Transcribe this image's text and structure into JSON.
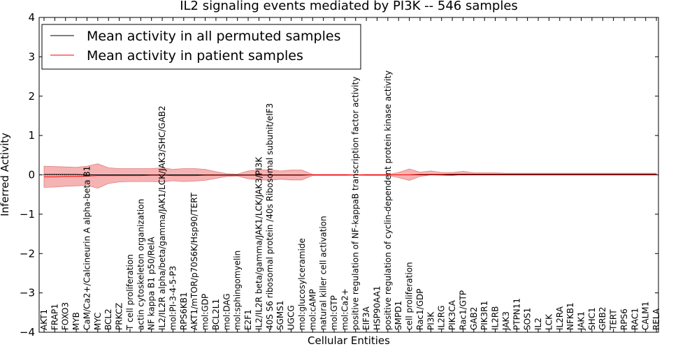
{
  "chart_data": {
    "type": "line",
    "title": "IL2 signaling events mediated by PI3K -- 546 samples",
    "xlabel": "Cellular Entities",
    "ylabel": "Inferred Activity",
    "ylim": [
      -4,
      4
    ],
    "yticks": [
      -4,
      -3,
      -2,
      -1,
      0,
      1,
      2,
      3,
      4
    ],
    "ytick_labels": [
      "−4",
      "−3",
      "−2",
      "−1",
      "0",
      "1",
      "2",
      "3",
      "4"
    ],
    "legend_position": "top-left",
    "categories": [
      "AKT1",
      "FRAP1",
      "FOXO3",
      "MYB",
      "CaM/Ca2+/Calcineurin A alpha-beta B1",
      "MYC",
      "BCL2",
      "PRKCZ",
      "T cell proliferation",
      "actin cytoskeleton organization",
      "NF kappa B1 p50/RelA",
      "IL2/IL2R alpha/beta/gamma/JAK1/LCK/JAK3/SHC/GAB2",
      "mol:PI-3-4-5-P3",
      "RPS6KB1",
      "AKT1/mTOR/p70S6K/Hsp90/TERT",
      "mol:GDP",
      "BCL2L1",
      "mol:DAG",
      "mol:sphingomyelin",
      "E2F1",
      "IL2/IL2R beta/gamma/JAK1/LCK/JAK3/PI3K",
      "40S S6 ribosomal protein /40s Ribosomal subunit/eIF3",
      "SGMS1",
      "UGCG",
      "mol:glucosylceramide",
      "mol:cAMP",
      "natural killer cell activation",
      "mol:GTP",
      "mol:Ca2+",
      "positive regulation of NF-kappaB transcription factor activity",
      "EIF3A",
      "HSP90AA1",
      "positive regulation of cyclin-dependent protein kinase activity",
      "SMPD1",
      "cell proliferation",
      "Rac1/GDP",
      "PI3K",
      "IL2RG",
      "PIK3CA",
      "Rac1/GTP",
      "GAB2",
      "PIK3R1",
      "IL2RB",
      "JAK3",
      "PTPN11",
      "SOS1",
      "IL2",
      "LCK",
      "IL2RA",
      "NFKB1",
      "JAK1",
      "SHC1",
      "GRB2",
      "TERT",
      "RPS6",
      "RAC1",
      "CALM1",
      "RELA"
    ],
    "series": [
      {
        "name": "Mean activity in all permuted samples",
        "color": "#000000",
        "values": [
          0.01,
          0.01,
          0.01,
          0.01,
          0.0,
          0.0,
          0.0,
          0.0,
          0.0,
          0.0,
          0.0,
          0.0,
          0.0,
          0.0,
          0.0,
          0.0,
          0.0,
          0.0,
          0.0,
          0.0,
          0.0,
          0.0,
          0.0,
          0.0,
          0.0,
          0.0,
          0.0,
          0.0,
          0.0,
          0.0,
          0.0,
          0.0,
          0.0,
          0.0,
          0.0,
          0.0,
          0.0,
          0.0,
          0.0,
          0.0,
          0.0,
          0.0,
          0.0,
          0.0,
          0.0,
          0.0,
          0.0,
          0.0,
          0.0,
          0.0,
          0.0,
          0.0,
          0.0,
          0.0,
          0.0,
          0.0,
          0.0,
          0.0
        ]
      },
      {
        "name": "Mean activity in patient samples",
        "color": "#ff0000",
        "values": [
          -0.05,
          -0.05,
          -0.04,
          -0.04,
          -0.03,
          -0.02,
          -0.02,
          -0.02,
          -0.02,
          -0.02,
          -0.01,
          -0.01,
          -0.02,
          -0.02,
          -0.02,
          -0.01,
          -0.01,
          -0.01,
          -0.01,
          -0.01,
          -0.01,
          -0.01,
          -0.01,
          -0.01,
          -0.01,
          0.0,
          0.0,
          0.0,
          0.0,
          0.0,
          0.0,
          0.0,
          0.0,
          0.0,
          0.0,
          0.01,
          0.01,
          0.01,
          0.02,
          0.02,
          0.02,
          0.02,
          0.02,
          0.02,
          0.02,
          0.02,
          0.02,
          0.02,
          0.02,
          0.02,
          0.02,
          0.02,
          0.02,
          0.02,
          0.02,
          0.02,
          0.02,
          0.02
        ],
        "upper": [
          0.22,
          0.21,
          0.2,
          0.19,
          0.22,
          0.28,
          0.18,
          0.16,
          0.16,
          0.16,
          0.16,
          0.18,
          0.14,
          0.16,
          0.16,
          0.14,
          0.08,
          0.03,
          0.02,
          0.1,
          0.12,
          0.13,
          0.1,
          0.12,
          0.12,
          0.01,
          0.01,
          0.01,
          0.01,
          0.0,
          0.01,
          0.01,
          0.01,
          0.06,
          0.15,
          0.07,
          0.1,
          0.06,
          0.06,
          0.09,
          0.05,
          0.05,
          0.05,
          0.04,
          0.04,
          0.04,
          0.04,
          0.04,
          0.04,
          0.04,
          0.04,
          0.04,
          0.04,
          0.04,
          0.04,
          0.04,
          0.04,
          0.04
        ],
        "lower": [
          -0.32,
          -0.31,
          -0.29,
          -0.28,
          -0.26,
          -0.34,
          -0.22,
          -0.18,
          -0.17,
          -0.17,
          -0.17,
          -0.18,
          -0.15,
          -0.17,
          -0.16,
          -0.14,
          -0.09,
          -0.04,
          -0.03,
          -0.1,
          -0.12,
          -0.14,
          -0.11,
          -0.13,
          -0.13,
          -0.02,
          -0.02,
          -0.02,
          -0.02,
          -0.01,
          -0.02,
          -0.02,
          -0.02,
          -0.07,
          -0.14,
          -0.04,
          0.0,
          -0.01,
          -0.02,
          0.01,
          0.0,
          0.0,
          0.0,
          0.0,
          0.0,
          0.0,
          0.0,
          0.0,
          0.0,
          0.0,
          0.0,
          0.0,
          0.0,
          0.0,
          0.0,
          0.0,
          0.0,
          0.0
        ]
      }
    ],
    "reference_line": {
      "value": 0,
      "style": "dotted",
      "color": "#000000"
    },
    "band_color": "#f08080"
  }
}
